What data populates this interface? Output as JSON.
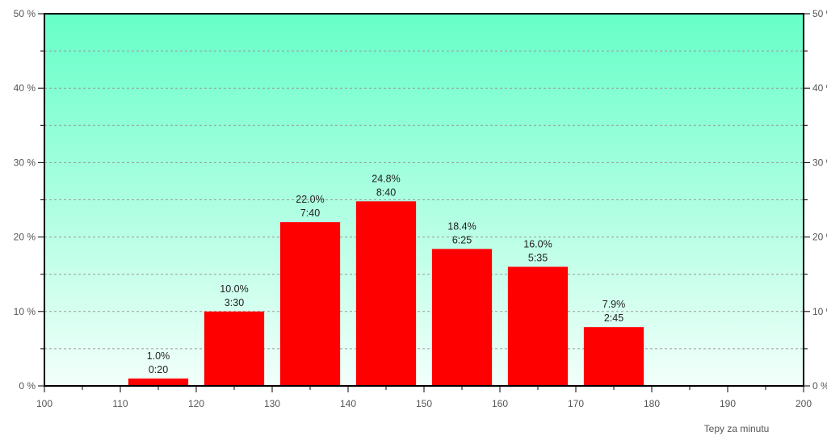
{
  "chart_data": {
    "type": "bar",
    "xlabel": "Tepy za minutu",
    "ylabel": "",
    "x_range": [
      100,
      200
    ],
    "y_range": [
      0,
      50
    ],
    "x_ticks": [
      100,
      110,
      120,
      130,
      140,
      150,
      160,
      170,
      180,
      190,
      200
    ],
    "y_ticks": [
      0,
      10,
      20,
      30,
      40,
      50
    ],
    "y_tick_suffix": " %",
    "y_axis_both_sides": true,
    "grid": "horizontal dashed",
    "bins": [
      {
        "from": 110,
        "to": 120,
        "percent": 1.0,
        "percent_label": "1.0%",
        "time": "0:20"
      },
      {
        "from": 120,
        "to": 130,
        "percent": 10.0,
        "percent_label": "10.0%",
        "time": "3:30"
      },
      {
        "from": 130,
        "to": 140,
        "percent": 22.0,
        "percent_label": "22.0%",
        "time": "7:40"
      },
      {
        "from": 140,
        "to": 150,
        "percent": 24.8,
        "percent_label": "24.8%",
        "time": "8:40"
      },
      {
        "from": 150,
        "to": 160,
        "percent": 18.4,
        "percent_label": "18.4%",
        "time": "6:25"
      },
      {
        "from": 160,
        "to": 170,
        "percent": 16.0,
        "percent_label": "16.0%",
        "time": "5:35"
      },
      {
        "from": 170,
        "to": 180,
        "percent": 7.9,
        "percent_label": "7.9%",
        "time": "2:45"
      }
    ],
    "colors": {
      "bar": "#ff0000",
      "background_top": "#66ffc8",
      "background_bottom": "#f2fffa",
      "grid": "#9a9a9a",
      "axis": "#000000"
    }
  }
}
